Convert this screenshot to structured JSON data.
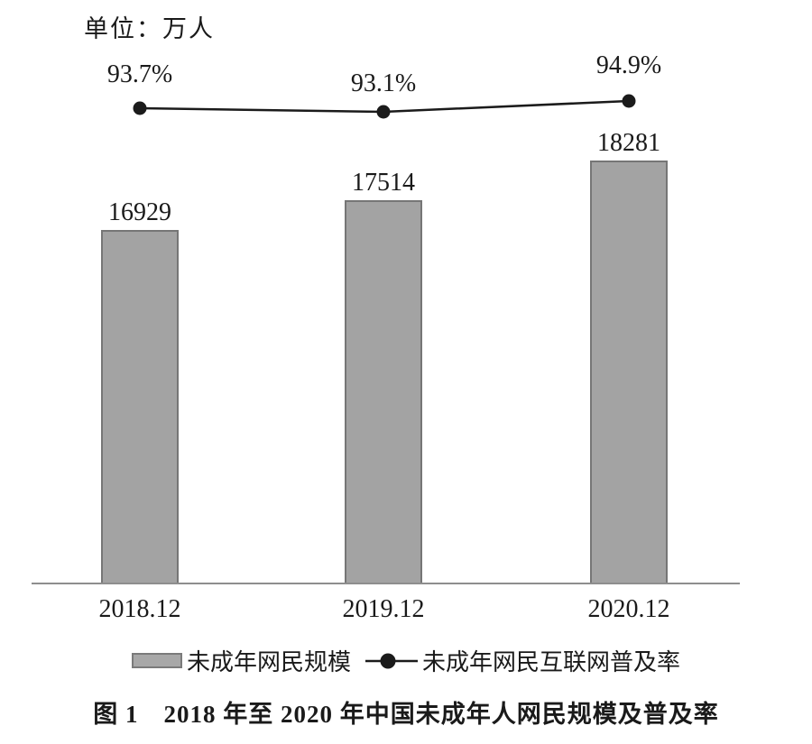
{
  "meta": {
    "unit_label": "单位：万人",
    "caption": "图 1　2018 年至 2020 年中国未成年人网民规模及普及率"
  },
  "chart_data": {
    "type": "bar",
    "subtype": "bar-with-line-overlay",
    "title": "图 1　2018 年至 2020 年中国未成年人网民规模及普及率",
    "unit_note": "单位：万人",
    "categories": [
      "2018.12",
      "2019.12",
      "2020.12"
    ],
    "series": [
      {
        "name": "未成年网民规模",
        "type": "bar",
        "unit": "万人",
        "values": [
          16929,
          17514,
          18281
        ]
      },
      {
        "name": "未成年网民互联网普及率",
        "type": "line",
        "unit": "%",
        "values": [
          93.7,
          93.1,
          94.9
        ]
      }
    ],
    "labels": {
      "bar": [
        "16929",
        "17514",
        "18281"
      ],
      "line": [
        "93.7%",
        "93.1%",
        "94.9%"
      ]
    },
    "legend": {
      "position": "bottom",
      "items": [
        {
          "label": "未成年网民规模",
          "marker": "gray-rect"
        },
        {
          "label": "未成年网民互联网普及率",
          "marker": "black-dot-line"
        }
      ]
    },
    "colors": {
      "bar_fill": "#a3a3a3",
      "bar_border": "#767676",
      "line": "#1b1b1b",
      "marker": "#1b1b1b",
      "axis": "#8e8e8e",
      "text": "#1a1a1a",
      "background": "#ffffff"
    },
    "layout_hints": {
      "grid": false,
      "axis_ticks": false,
      "value_labels": "above"
    }
  }
}
